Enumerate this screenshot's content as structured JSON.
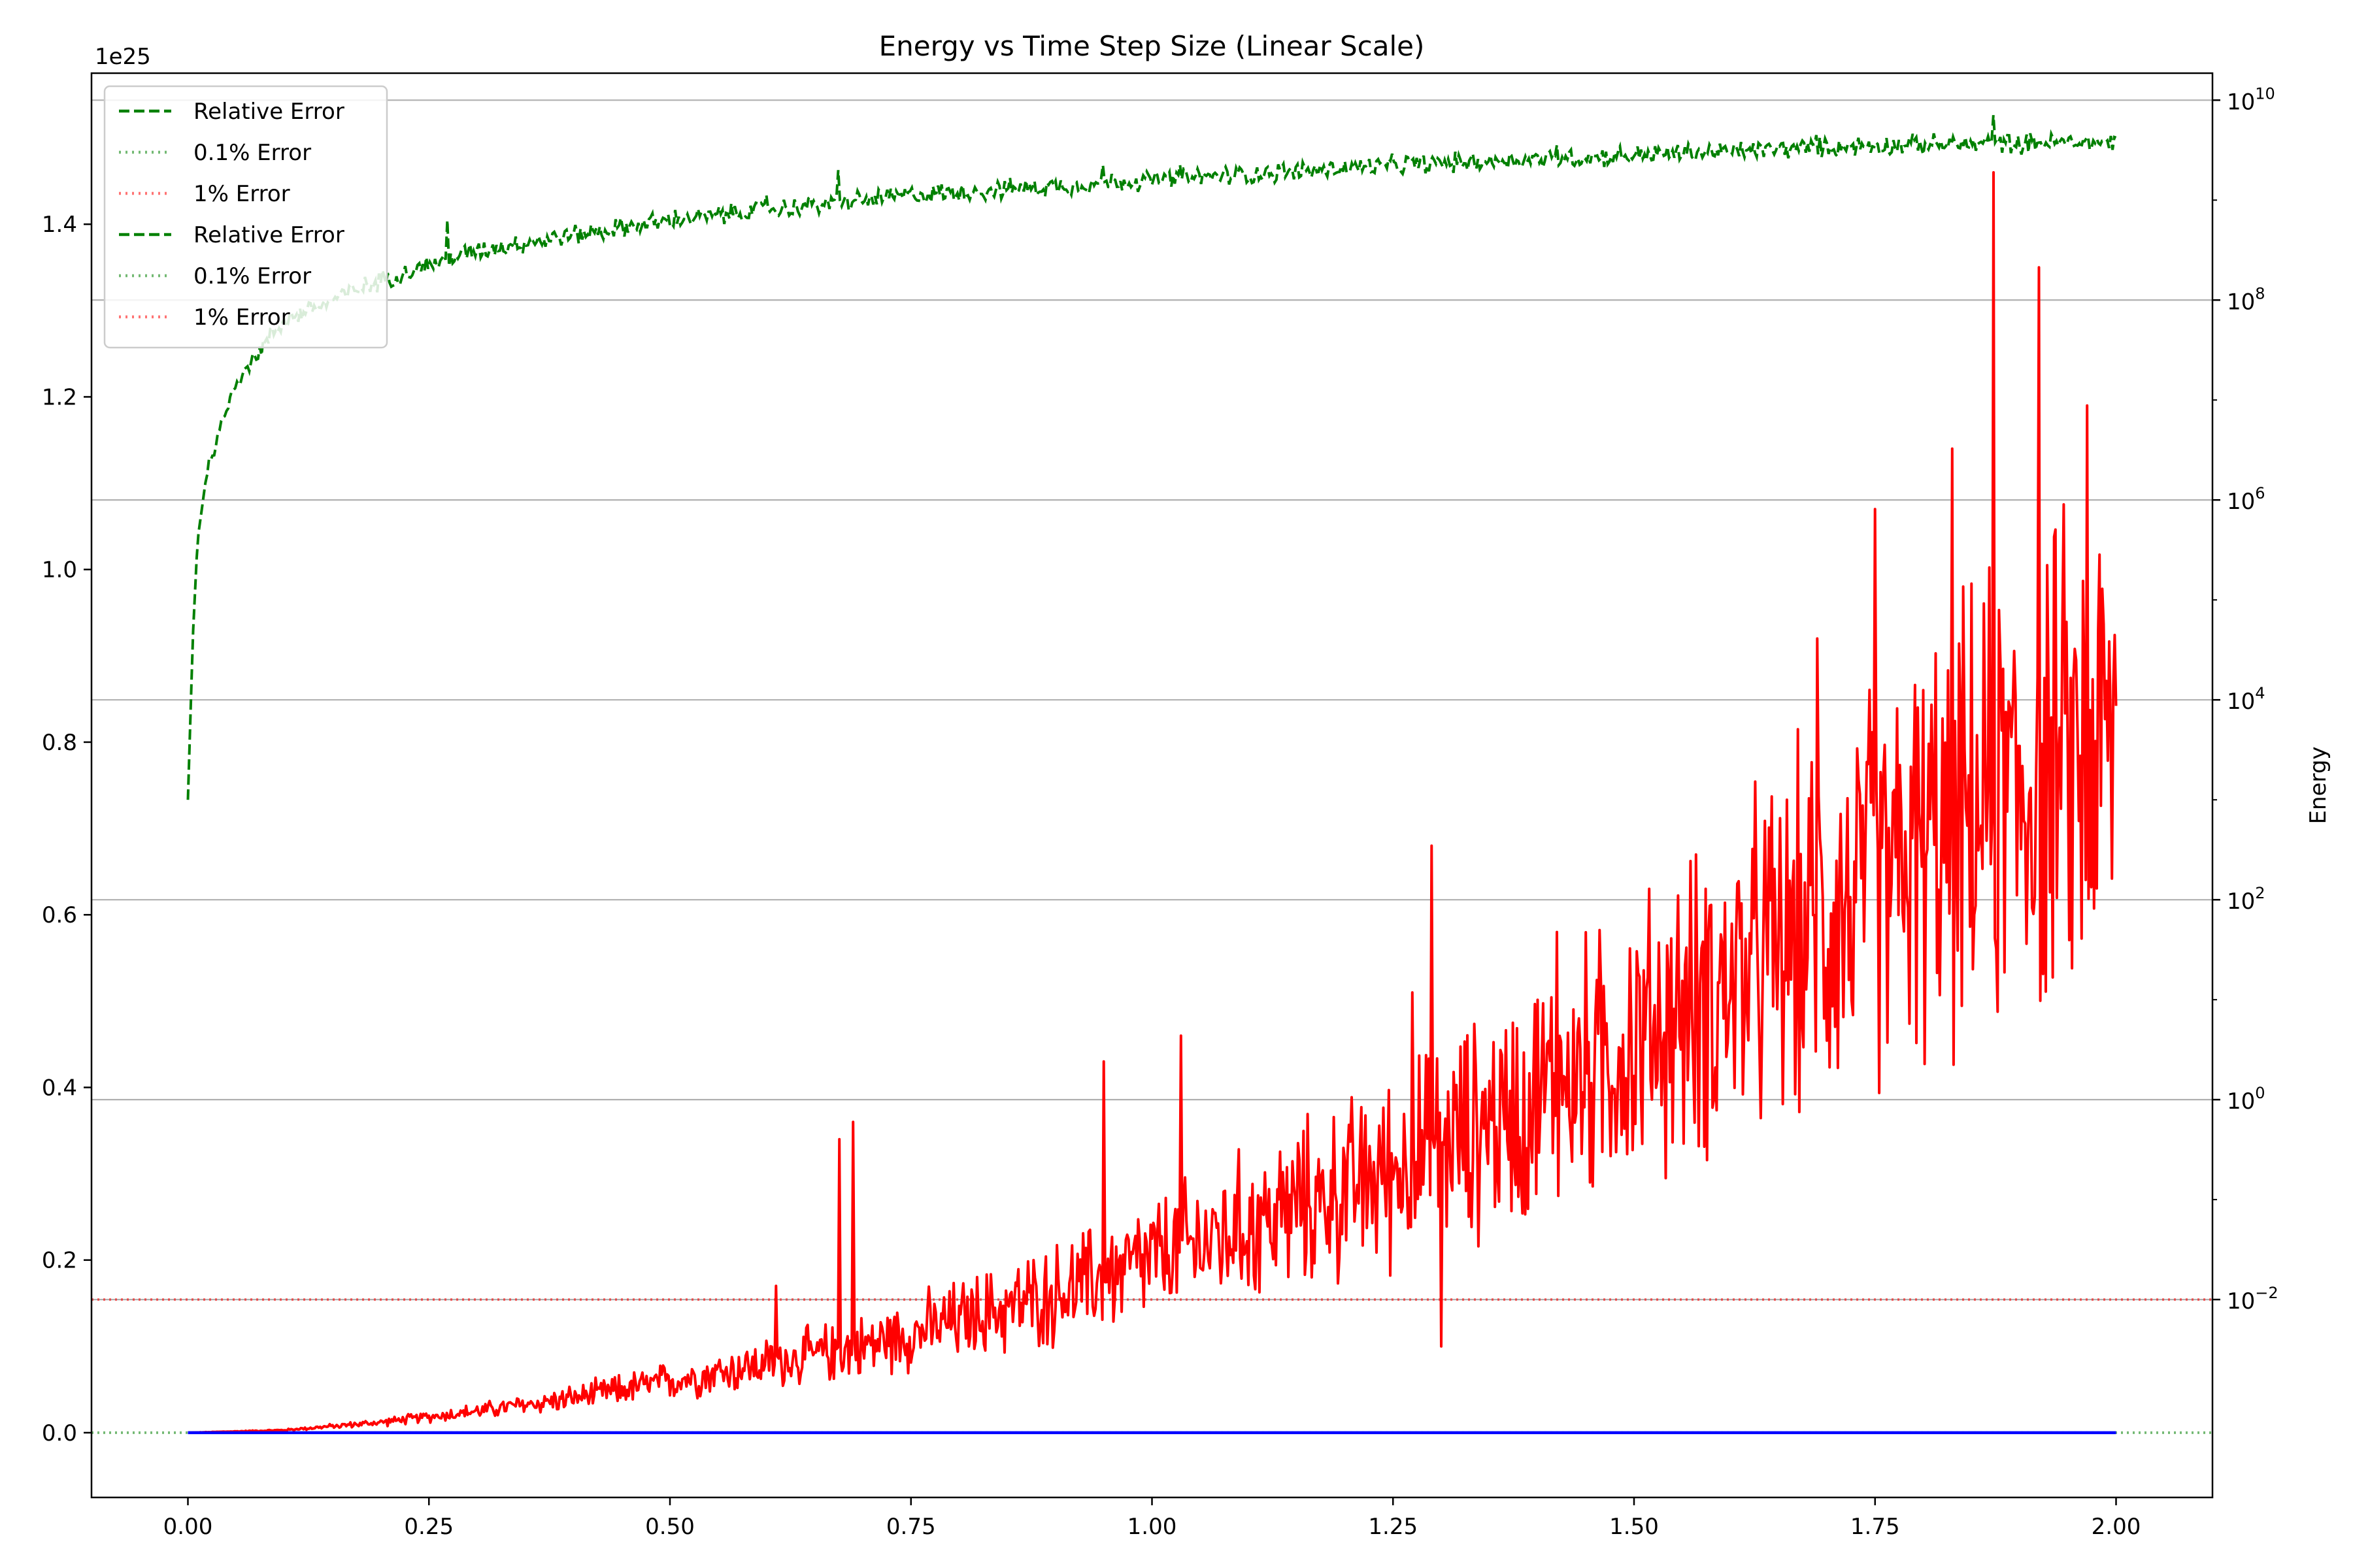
{
  "chart_data": {
    "type": "line",
    "title": "Energy vs Time Step Size (Linear Scale)",
    "xlabel": "",
    "xlim": [
      -0.1,
      2.1
    ],
    "left_axis": {
      "label": "",
      "scale": "linear",
      "offset_text": "1e25",
      "ylim": [
        -0.075,
        1.575
      ],
      "ticks": [
        0.0,
        0.2,
        0.4,
        0.6,
        0.8,
        1.0,
        1.2,
        1.4
      ],
      "tick_labels": [
        "0.0",
        "0.2",
        "0.4",
        "0.6",
        "0.8",
        "1.0",
        "1.2",
        "1.4"
      ]
    },
    "right_axis": {
      "label": "Energy",
      "scale": "log",
      "log_range": [
        -3.98,
        10.27
      ],
      "ticks": [
        -2,
        0,
        2,
        4,
        6,
        8,
        10
      ],
      "tick_labels": [
        {
          "base": "10",
          "exp": "−2"
        },
        {
          "base": "10",
          "exp": "0"
        },
        {
          "base": "10",
          "exp": "2"
        },
        {
          "base": "10",
          "exp": "4"
        },
        {
          "base": "10",
          "exp": "6"
        },
        {
          "base": "10",
          "exp": "8"
        },
        {
          "base": "10",
          "exp": "10"
        }
      ]
    },
    "x_ticks": [
      0.0,
      0.25,
      0.5,
      0.75,
      1.0,
      1.25,
      1.5,
      1.75,
      2.0
    ],
    "x_tick_labels": [
      "0.00",
      "0.25",
      "0.50",
      "0.75",
      "1.00",
      "1.25",
      "1.50",
      "1.75",
      "2.00"
    ],
    "grid": "horizontal lines at right-axis ticks",
    "series": [
      {
        "style": "solid",
        "color": "#ff0000",
        "axis": "left",
        "unit": "1e25",
        "x": [
          0.0,
          0.1,
          0.2,
          0.3,
          0.4,
          0.5,
          0.6,
          0.7,
          0.8,
          0.9,
          1.0,
          1.1,
          1.2,
          1.3,
          1.4,
          1.5,
          1.6,
          1.7,
          1.8,
          1.9,
          2.0
        ],
        "y": [
          0.0,
          0.003,
          0.012,
          0.025,
          0.04,
          0.06,
          0.08,
          0.1,
          0.13,
          0.16,
          0.2,
          0.24,
          0.28,
          0.33,
          0.39,
          0.45,
          0.52,
          0.6,
          0.67,
          0.75,
          0.8
        ],
        "noise_amplitude_relative": 0.32,
        "spikes": [
          {
            "x": 0.61,
            "y": 0.17
          },
          {
            "x": 0.675,
            "y": 0.34
          },
          {
            "x": 0.69,
            "y": 0.36
          },
          {
            "x": 0.95,
            "y": 0.43
          },
          {
            "x": 1.03,
            "y": 0.46
          },
          {
            "x": 1.27,
            "y": 0.51
          },
          {
            "x": 1.29,
            "y": 0.68
          },
          {
            "x": 1.42,
            "y": 0.58
          },
          {
            "x": 1.69,
            "y": 0.92
          },
          {
            "x": 1.75,
            "y": 1.07
          },
          {
            "x": 1.83,
            "y": 1.14
          },
          {
            "x": 1.873,
            "y": 1.46
          },
          {
            "x": 1.92,
            "y": 1.35
          },
          {
            "x": 1.97,
            "y": 1.19
          },
          {
            "x": 1.3,
            "y": 0.1
          }
        ]
      },
      {
        "style": "solid",
        "color": "#0000ff",
        "axis": "left",
        "unit": "1e25",
        "x": [
          0.0,
          2.0
        ],
        "y": [
          0.0,
          0.0
        ]
      },
      {
        "name": "Relative Error",
        "style": "dashed",
        "color": "#008000",
        "axis": "right",
        "unit": "log10",
        "x": [
          0.0,
          0.005,
          0.01,
          0.02,
          0.05,
          0.1,
          0.15,
          0.2,
          0.3,
          0.5,
          0.75,
          1.0,
          1.25,
          1.5,
          1.75,
          2.0
        ],
        "y": [
          3.0,
          4.6,
          5.6,
          6.3,
          7.2,
          7.8,
          8.0,
          8.2,
          8.5,
          8.8,
          9.05,
          9.2,
          9.35,
          9.45,
          9.55,
          9.58
        ],
        "noise_amplitude": 0.08,
        "spikes": [
          {
            "x": 0.27,
            "y": 8.8
          },
          {
            "x": 0.6,
            "y": 9.05
          },
          {
            "x": 0.675,
            "y": 9.3
          },
          {
            "x": 0.95,
            "y": 9.35
          },
          {
            "x": 1.03,
            "y": 9.35
          },
          {
            "x": 1.873,
            "y": 9.85
          },
          {
            "x": 1.42,
            "y": 9.55
          },
          {
            "x": 1.69,
            "y": 9.65
          }
        ]
      },
      {
        "name": "0.1% Error",
        "style": "dotted",
        "color": "#008000",
        "axis": "left",
        "y": 0.0
      },
      {
        "name": "1% Error",
        "style": "dotted",
        "color": "#ff0000",
        "axis": "right",
        "unit": "log10",
        "y": -2.0
      }
    ],
    "legend": {
      "placement": "top-left",
      "entries": [
        {
          "label": "Relative Error",
          "style": "dashed",
          "color": "#008000"
        },
        {
          "label": "0.1% Error",
          "style": "dotted",
          "color": "#008000"
        },
        {
          "label": "1% Error",
          "style": "dotted",
          "color": "#ff0000"
        },
        {
          "label": "Relative Error",
          "style": "dashed",
          "color": "#008000"
        },
        {
          "label": "0.1% Error",
          "style": "dotted",
          "color": "#008000"
        },
        {
          "label": "1% Error",
          "style": "dotted",
          "color": "#ff0000"
        }
      ]
    }
  }
}
